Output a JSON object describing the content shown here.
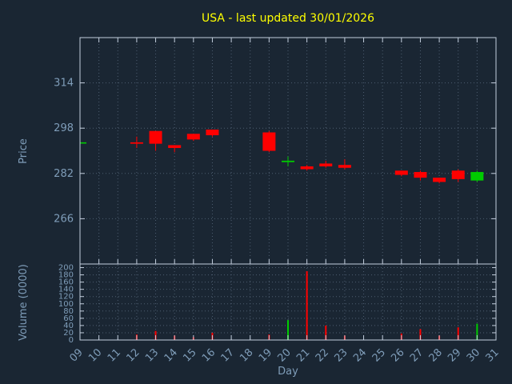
{
  "colors": {
    "background": "#1a2633",
    "title": "#ffff00",
    "axis_text": "#7f9db9",
    "grid": "#4d5d70",
    "border": "#c3cedd",
    "up": "#00cc00",
    "down": "#ff0000"
  },
  "chart_data": {
    "type": "candlestick",
    "title": "USA - last updated 30/01/2026",
    "xlabel": "Day",
    "grid": true,
    "panes": [
      "price",
      "volume"
    ],
    "price_axis": {
      "label": "Price",
      "ticks": [
        266,
        282,
        298,
        314
      ],
      "range": [
        250,
        330
      ]
    },
    "volume_axis": {
      "label": "Volume (0000)",
      "ticks": [
        0,
        20,
        40,
        60,
        80,
        100,
        120,
        140,
        160,
        180,
        200
      ],
      "range": [
        0,
        210
      ]
    },
    "x_axis": {
      "ticks": [
        "09",
        "10",
        "11",
        "12",
        "13",
        "14",
        "15",
        "16",
        "17",
        "18",
        "19",
        "20",
        "21",
        "22",
        "23",
        "24",
        "25",
        "26",
        "27",
        "28",
        "29",
        "30",
        "31"
      ],
      "range": [
        9,
        31
      ]
    },
    "candles": [
      {
        "day": 9,
        "open": 293,
        "high": 293,
        "low": 293,
        "close": 293,
        "direction": "up",
        "volume": 0
      },
      {
        "day": 12,
        "open": 293,
        "high": 295,
        "low": 291,
        "close": 292.5,
        "direction": "down",
        "volume": 15
      },
      {
        "day": 13,
        "open": 297,
        "high": 297,
        "low": 290,
        "close": 292.5,
        "direction": "down",
        "volume": 25
      },
      {
        "day": 14,
        "open": 292,
        "high": 292,
        "low": 289.5,
        "close": 291,
        "direction": "down",
        "volume": 12
      },
      {
        "day": 15,
        "open": 296,
        "high": 296,
        "low": 293.5,
        "close": 294,
        "direction": "down",
        "volume": 8
      },
      {
        "day": 16,
        "open": 297.5,
        "high": 297.5,
        "low": 295,
        "close": 295.5,
        "direction": "down",
        "volume": 20
      },
      {
        "day": 19,
        "open": 296.5,
        "high": 297,
        "low": 289.5,
        "close": 290,
        "direction": "down",
        "volume": 15
      },
      {
        "day": 20,
        "open": 286,
        "high": 288,
        "low": 284.5,
        "close": 286.5,
        "direction": "up",
        "volume": 55
      },
      {
        "day": 21,
        "open": 284.5,
        "high": 285,
        "low": 283,
        "close": 283.5,
        "direction": "down",
        "volume": 190
      },
      {
        "day": 22,
        "open": 285.5,
        "high": 286.5,
        "low": 284,
        "close": 284.5,
        "direction": "down",
        "volume": 40
      },
      {
        "day": 23,
        "open": 285,
        "high": 287,
        "low": 283.5,
        "close": 284,
        "direction": "down",
        "volume": 12
      },
      {
        "day": 26,
        "open": 283,
        "high": 283,
        "low": 281,
        "close": 281.5,
        "direction": "down",
        "volume": 18
      },
      {
        "day": 27,
        "open": 282.5,
        "high": 283,
        "low": 279.5,
        "close": 280.5,
        "direction": "down",
        "volume": 30
      },
      {
        "day": 28,
        "open": 280.5,
        "high": 280.5,
        "low": 278.5,
        "close": 279,
        "direction": "down",
        "volume": 12
      },
      {
        "day": 29,
        "open": 283,
        "high": 283.5,
        "low": 279,
        "close": 280,
        "direction": "down",
        "volume": 35
      },
      {
        "day": 30,
        "open": 279.5,
        "high": 283,
        "low": 279,
        "close": 282.5,
        "direction": "up",
        "volume": 45
      }
    ]
  }
}
